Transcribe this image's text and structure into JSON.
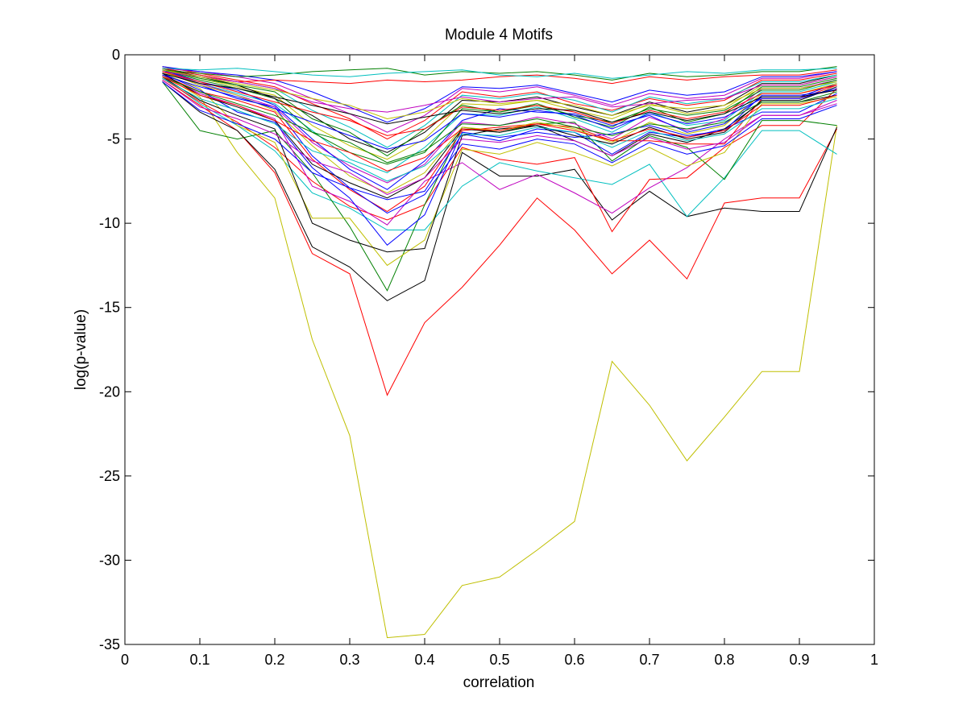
{
  "chart_data": {
    "type": "line",
    "title": "Module 4 Motifs",
    "xlabel": "correlation",
    "ylabel": "log(p-value)",
    "xlim": [
      0,
      1
    ],
    "ylim": [
      -35,
      0
    ],
    "xticks": [
      0,
      0.1,
      0.2,
      0.3,
      0.4,
      0.5,
      0.6,
      0.7,
      0.8,
      0.9,
      1
    ],
    "xtick_labels": [
      "0",
      "0.1",
      "0.2",
      "0.3",
      "0.4",
      "0.5",
      "0.6",
      "0.7",
      "0.8",
      "0.9",
      "1"
    ],
    "yticks": [
      0,
      -5,
      -10,
      -15,
      -20,
      -25,
      -30,
      -35
    ],
    "ytick_labels": [
      "0",
      "-5",
      "-10",
      "-15",
      "-20",
      "-25",
      "-30",
      "-35"
    ],
    "grid": false,
    "legend": "none",
    "x": [
      0.05,
      0.1,
      0.15,
      0.2,
      0.25,
      0.3,
      0.35,
      0.4,
      0.45,
      0.5,
      0.55,
      0.6,
      0.65,
      0.7,
      0.75,
      0.8,
      0.85,
      0.9,
      0.95
    ],
    "series": [
      {
        "color": "#bfbf00",
        "values": [
          -1.2,
          -2.5,
          -5.8,
          -8.5,
          -16.9,
          -22.6,
          -34.6,
          -34.4,
          -31.5,
          -31.0,
          -29.4,
          -27.7,
          -18.2,
          -20.8,
          -24.1,
          -21.5,
          -18.8,
          -18.8,
          -4.2
        ]
      },
      {
        "color": "#ff0000",
        "values": [
          -1.5,
          -3.0,
          -4.5,
          -7.0,
          -11.8,
          -13.0,
          -20.2,
          -15.9,
          -13.8,
          -11.3,
          -8.5,
          -10.4,
          -13.0,
          -11.0,
          -13.3,
          -8.8,
          -8.5,
          -8.5,
          -4.4
        ]
      },
      {
        "color": "#000000",
        "values": [
          -1.6,
          -3.4,
          -4.5,
          -6.8,
          -11.4,
          -12.6,
          -14.6,
          -13.4,
          -5.8,
          -7.2,
          -7.2,
          -6.8,
          -9.8,
          -8.1,
          -9.6,
          -9.1,
          -9.3,
          -9.3,
          -4.3
        ]
      },
      {
        "color": "#00bfbf",
        "values": [
          -1.3,
          -2.9,
          -4.2,
          -5.7,
          -8.2,
          -9.1,
          -10.4,
          -10.4,
          -7.8,
          -6.4,
          -6.9,
          -7.3,
          -7.7,
          -6.5,
          -9.6,
          -7.3,
          -4.5,
          -4.5,
          -5.9
        ]
      },
      {
        "color": "#ff0000",
        "values": [
          -1.4,
          -2.8,
          -4.0,
          -5.5,
          -7.5,
          -9.0,
          -9.8,
          -8.9,
          -5.5,
          -6.2,
          -6.5,
          -6.1,
          -10.5,
          -7.4,
          -7.3,
          -5.5,
          -4.2,
          -4.2,
          -2.0
        ]
      },
      {
        "color": "#007f00",
        "values": [
          -1.6,
          -4.5,
          -5.0,
          -4.5,
          -7.0,
          -10.2,
          -14.0,
          -8.9,
          -4.3,
          -4.6,
          -4.1,
          -4.0,
          -6.3,
          -4.8,
          -5.5,
          -7.4,
          -3.9,
          -3.9,
          -4.2
        ]
      },
      {
        "color": "#bf00bf",
        "values": [
          -1.2,
          -2.3,
          -3.0,
          -3.8,
          -7.8,
          -8.7,
          -10.1,
          -7.5,
          -6.4,
          -8.0,
          -7.1,
          -8.2,
          -9.4,
          -7.9,
          -6.7,
          -5.0,
          -3.6,
          -3.6,
          -2.7
        ]
      },
      {
        "color": "#0000ff",
        "values": [
          -1.0,
          -1.8,
          -2.6,
          -3.1,
          -6.0,
          -7.9,
          -8.6,
          -8.1,
          -4.7,
          -5.1,
          -4.4,
          -4.6,
          -5.9,
          -4.6,
          -4.9,
          -4.4,
          -3.4,
          -3.4,
          -2.3
        ]
      },
      {
        "color": "#bfbf00",
        "values": [
          -1.1,
          -2.0,
          -4.2,
          -5.2,
          -9.7,
          -9.7,
          -12.5,
          -11.0,
          -5.6,
          -5.9,
          -5.2,
          -5.8,
          -6.6,
          -5.5,
          -6.6,
          -5.8,
          -2.9,
          -2.9,
          -2.5
        ]
      },
      {
        "color": "#000000",
        "values": [
          -1.3,
          -2.7,
          -3.6,
          -4.4,
          -10.0,
          -11.0,
          -11.7,
          -11.5,
          -4.8,
          -4.4,
          -4.2,
          -5.1,
          -6.0,
          -4.7,
          -5.2,
          -4.4,
          -2.8,
          -2.8,
          -2.4
        ]
      },
      {
        "color": "#ff0000",
        "values": [
          -1.2,
          -2.2,
          -2.7,
          -3.4,
          -6.2,
          -8.0,
          -9.3,
          -7.8,
          -4.5,
          -4.3,
          -4.1,
          -4.3,
          -5.1,
          -5.1,
          -5.3,
          -5.3,
          -2.6,
          -2.6,
          -1.8
        ]
      },
      {
        "color": "#0000ff",
        "values": [
          -1.1,
          -2.1,
          -3.4,
          -4.0,
          -6.7,
          -8.5,
          -11.3,
          -9.5,
          -4.6,
          -4.9,
          -4.6,
          -4.9,
          -4.7,
          -4.2,
          -4.8,
          -4.5,
          -2.4,
          -2.4,
          -2.1
        ]
      },
      {
        "color": "#00bfbf",
        "values": [
          -0.9,
          -1.7,
          -2.3,
          -2.9,
          -4.5,
          -6.2,
          -7.0,
          -5.5,
          -3.5,
          -3.6,
          -3.1,
          -3.8,
          -4.6,
          -3.4,
          -4.2,
          -3.9,
          -2.2,
          -2.2,
          -1.6
        ]
      },
      {
        "color": "#bf00bf",
        "values": [
          -1.0,
          -1.7,
          -2.4,
          -3.1,
          -5.2,
          -6.6,
          -7.6,
          -6.5,
          -4.0,
          -4.2,
          -3.7,
          -4.1,
          -5.0,
          -3.7,
          -4.5,
          -3.8,
          -2.0,
          -2.0,
          -1.5
        ]
      },
      {
        "color": "#007f00",
        "values": [
          -0.9,
          -1.5,
          -2.0,
          -2.6,
          -4.6,
          -5.8,
          -6.5,
          -5.8,
          -3.2,
          -3.4,
          -2.9,
          -3.7,
          -4.3,
          -3.1,
          -4.0,
          -3.5,
          -1.9,
          -1.9,
          -1.4
        ]
      },
      {
        "color": "#bfbf00",
        "values": [
          -0.8,
          -1.4,
          -1.9,
          -2.4,
          -4.2,
          -5.4,
          -6.2,
          -5.0,
          -2.9,
          -3.0,
          -2.7,
          -3.3,
          -3.8,
          -2.9,
          -3.5,
          -3.2,
          -1.8,
          -1.8,
          -1.3
        ]
      },
      {
        "color": "#000000",
        "values": [
          -0.8,
          -1.3,
          -1.8,
          -2.6,
          -3.6,
          -5.0,
          -5.8,
          -4.6,
          -2.7,
          -2.8,
          -2.5,
          -3.1,
          -3.6,
          -2.8,
          -3.4,
          -3.0,
          -1.7,
          -1.7,
          -1.2
        ]
      },
      {
        "color": "#0000ff",
        "values": [
          -0.9,
          -1.6,
          -2.1,
          -3.0,
          -5.0,
          -6.8,
          -8.0,
          -6.3,
          -3.9,
          -3.2,
          -3.4,
          -3.5,
          -4.2,
          -3.6,
          -4.6,
          -4.1,
          -2.5,
          -2.5,
          -1.7
        ]
      },
      {
        "color": "#ff0000",
        "values": [
          -0.7,
          -1.1,
          -1.5,
          -1.9,
          -2.9,
          -3.8,
          -5.0,
          -3.9,
          -2.2,
          -2.5,
          -2.2,
          -2.9,
          -3.3,
          -2.6,
          -3.0,
          -2.7,
          -1.5,
          -1.5,
          -1.1
        ]
      },
      {
        "color": "#00bfbf",
        "values": [
          -0.8,
          -1.2,
          -1.6,
          -2.0,
          -3.3,
          -4.3,
          -5.5,
          -4.2,
          -2.4,
          -2.6,
          -2.3,
          -2.7,
          -3.4,
          -2.5,
          -2.9,
          -2.6,
          -1.6,
          -1.6,
          -1.2
        ]
      },
      {
        "color": "#bf00bf",
        "values": [
          -0.8,
          -1.0,
          -1.3,
          -1.7,
          -2.6,
          -3.5,
          -4.6,
          -3.6,
          -2.0,
          -2.2,
          -1.9,
          -2.4,
          -3.0,
          -2.3,
          -2.6,
          -2.4,
          -1.4,
          -1.4,
          -1.0
        ]
      },
      {
        "color": "#007f00",
        "values": [
          -0.9,
          -1.4,
          -1.8,
          -2.2,
          -3.8,
          -4.6,
          -6.0,
          -4.4,
          -3.0,
          -3.4,
          -3.0,
          -3.6,
          -4.0,
          -3.2,
          -3.6,
          -3.3,
          -2.1,
          -2.1,
          -1.5
        ]
      },
      {
        "color": "#bfbf00",
        "values": [
          -1.0,
          -1.8,
          -2.4,
          -3.3,
          -5.4,
          -7.2,
          -8.2,
          -7.0,
          -4.3,
          -4.5,
          -4.0,
          -4.4,
          -5.2,
          -4.0,
          -4.7,
          -4.2,
          -2.3,
          -2.3,
          -1.7
        ]
      },
      {
        "color": "#000000",
        "values": [
          -1.1,
          -2.4,
          -3.1,
          -3.9,
          -6.5,
          -7.6,
          -8.5,
          -7.3,
          -4.4,
          -4.6,
          -4.2,
          -4.8,
          -5.3,
          -4.3,
          -5.0,
          -4.6,
          -2.7,
          -2.7,
          -1.9
        ]
      },
      {
        "color": "#0000ff",
        "values": [
          -0.7,
          -1.0,
          -1.2,
          -1.5,
          -2.2,
          -3.1,
          -4.0,
          -3.2,
          -1.9,
          -2.0,
          -1.8,
          -2.3,
          -2.8,
          -2.1,
          -2.4,
          -2.2,
          -1.3,
          -1.3,
          -1.0
        ]
      },
      {
        "color": "#ff0000",
        "values": [
          -0.8,
          -1.2,
          -1.6,
          -1.5,
          -1.6,
          -1.7,
          -1.5,
          -1.6,
          -1.5,
          -1.3,
          -1.2,
          -1.4,
          -1.7,
          -1.3,
          -1.5,
          -1.3,
          -1.2,
          -1.2,
          -0.9
        ]
      },
      {
        "color": "#007f00",
        "values": [
          -0.9,
          -1.1,
          -1.3,
          -1.2,
          -1.0,
          -0.9,
          -0.8,
          -1.2,
          -1.0,
          -1.1,
          -1.0,
          -1.2,
          -1.5,
          -1.1,
          -1.3,
          -1.2,
          -1.0,
          -1.0,
          -0.7
        ]
      },
      {
        "color": "#00bfbf",
        "values": [
          -0.8,
          -0.9,
          -0.8,
          -1.0,
          -1.2,
          -1.3,
          -1.1,
          -1.0,
          -0.9,
          -1.2,
          -1.3,
          -1.1,
          -1.4,
          -1.2,
          -1.0,
          -1.1,
          -0.9,
          -0.9,
          -0.8
        ]
      },
      {
        "color": "#bf00bf",
        "values": [
          -1.0,
          -1.3,
          -1.6,
          -2.0,
          -2.8,
          -3.2,
          -3.4,
          -3.0,
          -2.5,
          -2.8,
          -2.6,
          -2.5,
          -3.1,
          -2.9,
          -2.7,
          -2.6,
          -1.8,
          -1.8,
          -1.3
        ]
      },
      {
        "color": "#0000ff",
        "values": [
          -1.2,
          -1.9,
          -2.5,
          -3.2,
          -4.0,
          -4.8,
          -5.6,
          -5.1,
          -3.5,
          -3.7,
          -3.3,
          -3.6,
          -4.4,
          -3.5,
          -4.1,
          -3.7,
          -2.6,
          -2.6,
          -2.0
        ]
      },
      {
        "color": "#ff0000",
        "values": [
          -1.0,
          -1.6,
          -2.2,
          -2.8,
          -3.4,
          -3.9,
          -4.8,
          -4.4,
          -3.1,
          -3.3,
          -3.0,
          -3.4,
          -4.1,
          -3.3,
          -3.8,
          -3.4,
          -2.3,
          -2.3,
          -1.8
        ]
      },
      {
        "color": "#bfbf00",
        "values": [
          -0.9,
          -1.3,
          -1.7,
          -2.1,
          -2.6,
          -3.0,
          -3.8,
          -3.4,
          -2.6,
          -2.9,
          -2.7,
          -3.0,
          -3.6,
          -3.0,
          -3.2,
          -3.0,
          -2.0,
          -2.0,
          -1.6
        ]
      },
      {
        "color": "#000000",
        "values": [
          -1.1,
          -1.7,
          -2.0,
          -2.5,
          -3.0,
          -3.5,
          -4.1,
          -3.7,
          -3.3,
          -3.5,
          -3.2,
          -3.3,
          -4.0,
          -3.4,
          -3.9,
          -3.5,
          -2.5,
          -2.5,
          -2.1
        ]
      },
      {
        "color": "#007f00",
        "values": [
          -1.3,
          -2.2,
          -2.9,
          -3.6,
          -4.6,
          -5.2,
          -6.4,
          -5.7,
          -4.1,
          -4.2,
          -3.8,
          -4.3,
          -4.8,
          -4.1,
          -4.4,
          -4.0,
          -2.8,
          -2.8,
          -2.2
        ]
      },
      {
        "color": "#00bfbf",
        "values": [
          -1.4,
          -2.6,
          -3.3,
          -4.1,
          -5.7,
          -6.4,
          -7.5,
          -6.6,
          -4.7,
          -4.8,
          -4.3,
          -4.6,
          -5.5,
          -4.5,
          -5.1,
          -4.7,
          -3.2,
          -3.2,
          -2.6
        ]
      },
      {
        "color": "#bf00bf",
        "values": [
          -1.5,
          -3.1,
          -3.8,
          -4.7,
          -6.3,
          -7.0,
          -8.3,
          -7.3,
          -5.0,
          -5.2,
          -4.8,
          -5.1,
          -6.0,
          -4.9,
          -5.6,
          -5.2,
          -3.6,
          -3.6,
          -2.9
        ]
      },
      {
        "color": "#ff0000",
        "values": [
          -1.3,
          -2.4,
          -3.0,
          -3.9,
          -5.1,
          -5.8,
          -6.9,
          -6.1,
          -4.4,
          -4.5,
          -4.1,
          -4.5,
          -5.1,
          -4.4,
          -4.9,
          -4.5,
          -3.0,
          -3.0,
          -2.4
        ]
      },
      {
        "color": "#0000ff",
        "values": [
          -1.6,
          -3.3,
          -4.1,
          -5.0,
          -7.0,
          -7.9,
          -9.4,
          -8.3,
          -5.3,
          -5.6,
          -5.0,
          -5.3,
          -6.4,
          -5.2,
          -5.9,
          -5.4,
          -3.8,
          -3.8,
          -3.0
        ]
      }
    ]
  }
}
